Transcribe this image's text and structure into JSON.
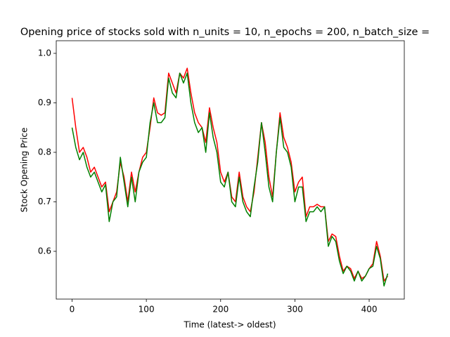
{
  "chart_data": {
    "type": "line",
    "title": "Opening price of stocks sold with n_units = 10, n_epochs = 200, n_batch_size =",
    "xlabel": "Time (latest-> oldest)",
    "ylabel": "Stock Opening Price",
    "xlim": [
      -21.3,
      447.3
    ],
    "ylim": [
      0.5035,
      1.0255
    ],
    "xticks": [
      0,
      100,
      200,
      300,
      400
    ],
    "yticks": [
      0.6,
      0.7,
      0.8,
      0.9,
      {
        "value": 1.0,
        "label": "1.0"
      }
    ],
    "x": [
      0,
      5,
      10,
      15,
      20,
      25,
      30,
      35,
      40,
      45,
      50,
      55,
      60,
      65,
      70,
      75,
      80,
      85,
      90,
      95,
      100,
      105,
      110,
      115,
      120,
      125,
      130,
      135,
      140,
      145,
      150,
      155,
      160,
      165,
      170,
      175,
      180,
      185,
      190,
      195,
      200,
      205,
      210,
      215,
      220,
      225,
      230,
      235,
      240,
      245,
      250,
      255,
      260,
      265,
      270,
      275,
      280,
      285,
      290,
      295,
      300,
      305,
      310,
      315,
      320,
      325,
      330,
      335,
      340,
      345,
      350,
      355,
      360,
      365,
      370,
      375,
      380,
      385,
      390,
      395,
      400,
      405,
      410,
      415,
      420,
      425
    ],
    "series": [
      {
        "color": "#ff0000",
        "values": [
          0.91,
          0.85,
          0.8,
          0.81,
          0.79,
          0.76,
          0.77,
          0.75,
          0.73,
          0.74,
          0.68,
          0.7,
          0.72,
          0.78,
          0.75,
          0.7,
          0.76,
          0.72,
          0.76,
          0.79,
          0.8,
          0.85,
          0.91,
          0.88,
          0.875,
          0.88,
          0.96,
          0.94,
          0.92,
          0.96,
          0.95,
          0.97,
          0.92,
          0.88,
          0.86,
          0.85,
          0.82,
          0.89,
          0.85,
          0.82,
          0.76,
          0.74,
          0.76,
          0.71,
          0.7,
          0.76,
          0.71,
          0.69,
          0.68,
          0.72,
          0.79,
          0.86,
          0.82,
          0.75,
          0.71,
          0.8,
          0.88,
          0.83,
          0.81,
          0.78,
          0.72,
          0.74,
          0.75,
          0.67,
          0.69,
          0.69,
          0.695,
          0.69,
          0.69,
          0.62,
          0.635,
          0.63,
          0.59,
          0.56,
          0.57,
          0.565,
          0.545,
          0.56,
          0.545,
          0.55,
          0.565,
          0.575,
          0.62,
          0.59,
          0.54,
          0.55
        ]
      },
      {
        "color": "#008000",
        "values": [
          0.85,
          0.81,
          0.785,
          0.8,
          0.77,
          0.75,
          0.76,
          0.74,
          0.72,
          0.735,
          0.66,
          0.7,
          0.71,
          0.79,
          0.74,
          0.69,
          0.75,
          0.7,
          0.76,
          0.78,
          0.79,
          0.86,
          0.9,
          0.86,
          0.86,
          0.87,
          0.95,
          0.92,
          0.91,
          0.96,
          0.94,
          0.96,
          0.9,
          0.86,
          0.84,
          0.85,
          0.8,
          0.88,
          0.83,
          0.8,
          0.74,
          0.73,
          0.76,
          0.7,
          0.69,
          0.75,
          0.7,
          0.68,
          0.67,
          0.73,
          0.78,
          0.86,
          0.8,
          0.73,
          0.7,
          0.8,
          0.87,
          0.81,
          0.8,
          0.77,
          0.7,
          0.73,
          0.73,
          0.66,
          0.68,
          0.68,
          0.69,
          0.68,
          0.69,
          0.61,
          0.63,
          0.62,
          0.58,
          0.555,
          0.57,
          0.56,
          0.54,
          0.56,
          0.54,
          0.55,
          0.565,
          0.57,
          0.61,
          0.585,
          0.53,
          0.555
        ]
      }
    ]
  }
}
